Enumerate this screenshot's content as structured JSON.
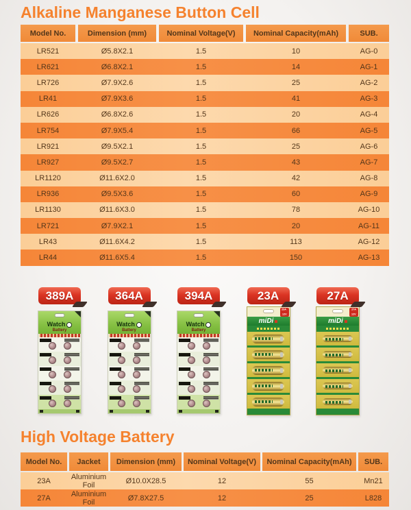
{
  "button_cell_section": {
    "title": "Alkaline Manganese Button Cell",
    "table": {
      "headers": [
        "Model No.",
        "Dimension (mm)",
        "Nominal Voltage(V)",
        "Nominal Capacity(mAh)",
        "SUB."
      ],
      "rows": [
        [
          "LR521",
          "Ø5.8X2.1",
          "1.5",
          "10",
          "AG-0"
        ],
        [
          "LR621",
          "Ø6.8X2.1",
          "1.5",
          "14",
          "AG-1"
        ],
        [
          "LR726",
          "Ø7.9X2.6",
          "1.5",
          "25",
          "AG-2"
        ],
        [
          "LR41",
          "Ø7.9X3.6",
          "1.5",
          "41",
          "AG-3"
        ],
        [
          "LR626",
          "Ø6.8X2.6",
          "1.5",
          "20",
          "AG-4"
        ],
        [
          "LR754",
          "Ø7.9X5.4",
          "1.5",
          "66",
          "AG-5"
        ],
        [
          "LR921",
          "Ø9.5X2.1",
          "1.5",
          "25",
          "AG-6"
        ],
        [
          "LR927",
          "Ø9.5X2.7",
          "1.5",
          "43",
          "AG-7"
        ],
        [
          "LR1120",
          "Ø11.6X2.0",
          "1.5",
          "42",
          "AG-8"
        ],
        [
          "LR936",
          "Ø9.5X3.6",
          "1.5",
          "60",
          "AG-9"
        ],
        [
          "LR1130",
          "Ø11.6X3.0",
          "1.5",
          "78",
          "AG-10"
        ],
        [
          "LR721",
          "Ø7.9X2.1",
          "1.5",
          "20",
          "AG-11"
        ],
        [
          "LR43",
          "Ø11.6X4.2",
          "1.5",
          "113",
          "AG-12"
        ],
        [
          "LR44",
          "Ø11.6X5.4",
          "1.5",
          "150",
          "AG-13"
        ]
      ]
    }
  },
  "products": [
    {
      "label": "389A",
      "type": "watch"
    },
    {
      "label": "364A",
      "type": "watch"
    },
    {
      "label": "394A",
      "type": "watch"
    },
    {
      "label": "23A",
      "type": "midi",
      "badge_line1": "23A",
      "badge_line2": "12V"
    },
    {
      "label": "27A",
      "type": "midi",
      "badge_line1": "27A",
      "badge_line2": "12V"
    }
  ],
  "watch_pack": {
    "brand_line1": "Watch",
    "brand_line2": "Battery"
  },
  "midi_pack": {
    "logo": "miDi"
  },
  "high_voltage_section": {
    "title": "High Voltage Battery",
    "table": {
      "headers": [
        "Model No.",
        "Jacket",
        "Dimension (mm)",
        "Nominal Voltage(V)",
        "Nominal Capacity(mAh)",
        "SUB."
      ],
      "rows": [
        [
          "23A",
          "Aluminium Foil",
          "Ø10.0X28.5",
          "12",
          "55",
          "Mn21"
        ],
        [
          "27A",
          "Aluminium Foil",
          "Ø7.8X27.5",
          "12",
          "25",
          "L828"
        ]
      ]
    }
  },
  "colors": {
    "title_orange": "#f5822e",
    "table_header": "#f08a38",
    "row_light": "#fbce97",
    "row_dark": "#f58638",
    "row_text": "#53361a",
    "label_red": "#da3423",
    "pack_green": "#85c043",
    "midi_green": "#2a8a38",
    "midi_olive": "#d9c850"
  }
}
